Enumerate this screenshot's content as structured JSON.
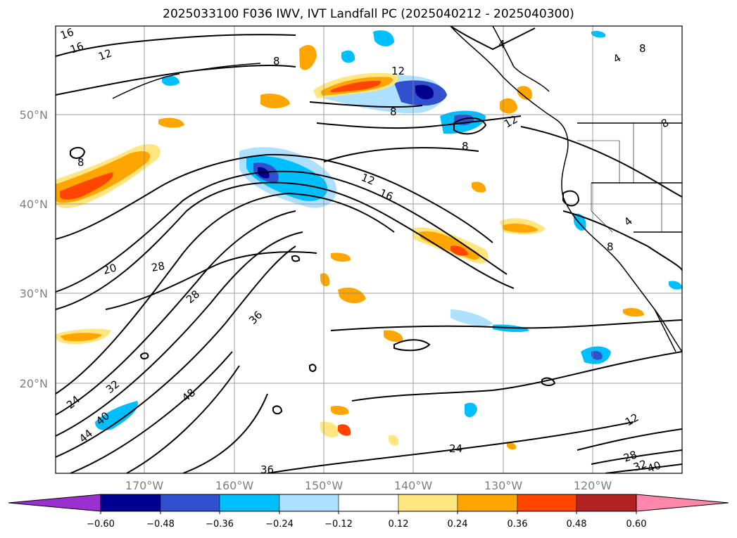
{
  "title": "2025033100 F036 IWV, IVT Landfall PC (2025040212 - 2025040300)",
  "map": {
    "lat_ticks": [
      "50°N",
      "40°N",
      "30°N",
      "20°N"
    ],
    "lon_ticks": [
      "170°W",
      "160°W",
      "150°W",
      "140°W",
      "130°W",
      "120°W"
    ],
    "contour_labels": [
      "16",
      "16",
      "12",
      "8",
      "12",
      "8",
      "8",
      "4",
      "8",
      "12",
      "8",
      "4",
      "8",
      "12",
      "16",
      "20",
      "28",
      "28",
      "36",
      "32",
      "24",
      "40",
      "44",
      "48",
      "24",
      "12",
      "28",
      "32",
      "36",
      "40",
      "4",
      "8"
    ]
  },
  "colorbar": {
    "ticks": [
      "−0.60",
      "−0.48",
      "−0.36",
      "−0.24",
      "−0.12",
      "0.12",
      "0.24",
      "0.36",
      "0.48",
      "0.60"
    ],
    "colors": {
      "under": "#9b30d0",
      "bins": [
        "#000090",
        "#3050d0",
        "#00bfff",
        "#aee0ff",
        "#ffffff",
        "#ffe680",
        "#ffa500",
        "#ff4500",
        "#b22222"
      ],
      "over": "#ff88aa"
    }
  }
}
